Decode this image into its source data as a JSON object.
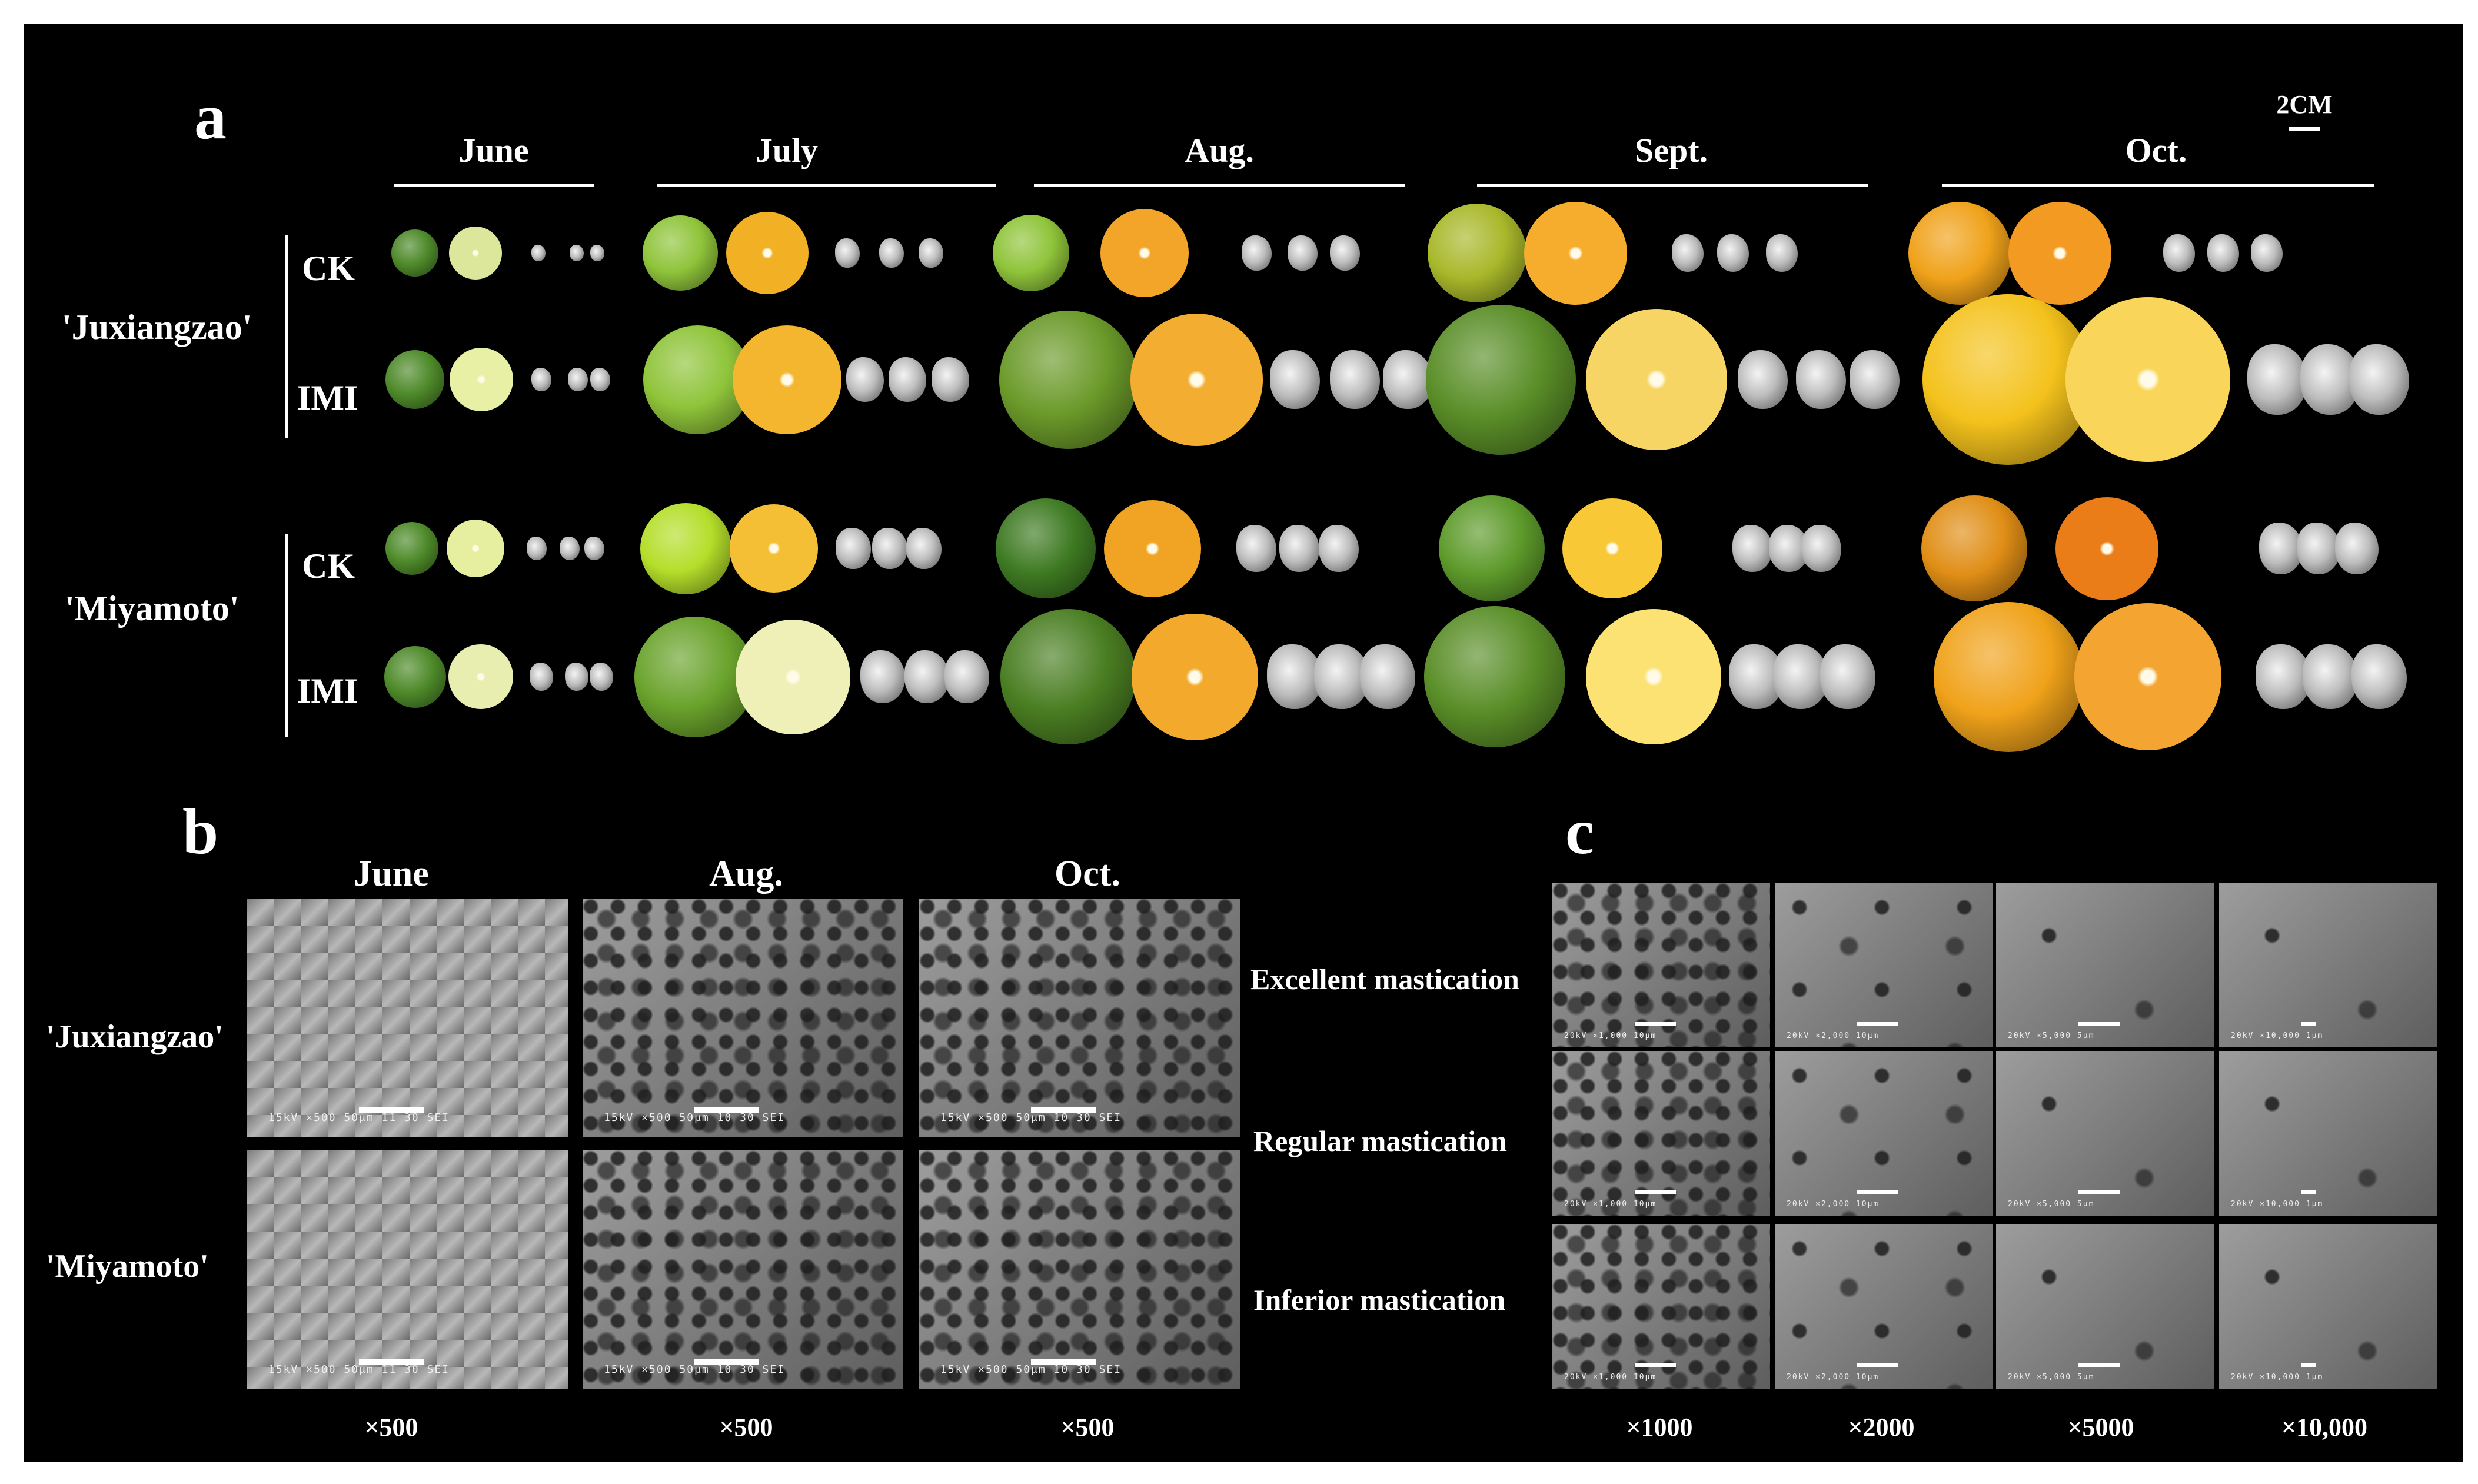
{
  "panel_a": {
    "label": "a",
    "scale_label": "2CM",
    "months": [
      "June",
      "July",
      "Aug.",
      "Sept.",
      "Oct."
    ],
    "cultivars": [
      "'Juxiangzao'",
      "'Miyamoto'"
    ],
    "treatments": [
      "CK",
      "IMI"
    ]
  },
  "panel_b": {
    "label": "b",
    "months": [
      "June",
      "Aug.",
      "Oct."
    ],
    "rows": [
      "'Juxiangzao'",
      "'Miyamoto'"
    ],
    "mastication": [
      "Excellent mastication",
      "Regular mastication",
      "Inferior mastication"
    ],
    "magnifications": [
      "×500",
      "×500",
      "×500"
    ],
    "sem_text": [
      "15kV ×500 50μm 11 30 SEI",
      "15kV ×500 50μm 10 30 SEI",
      "15kV ×500 50μm 10 30 SEI",
      "15kV ×500 50μm 11 30 SEI",
      "15kV ×500 50μm 10 30 SEI",
      "15kV ×500 50μm 10 30 SEI"
    ]
  },
  "panel_c": {
    "label": "c",
    "magnifications": [
      "×1000",
      "×2000",
      "×5000",
      "×10,000"
    ],
    "sem_text": [
      "20kV ×1,000 10μm",
      "20kV ×2,000 10μm",
      "20kV ×5,000 5μm",
      "20kV ×10,000 1μm"
    ]
  },
  "colors": {
    "background": "#000000",
    "green_fruit": "#4e8a2a",
    "light_green_fruit": "#8fc43a",
    "orange_fruit": "#f0a21a",
    "yellow_fruit": "#f4c21c"
  }
}
